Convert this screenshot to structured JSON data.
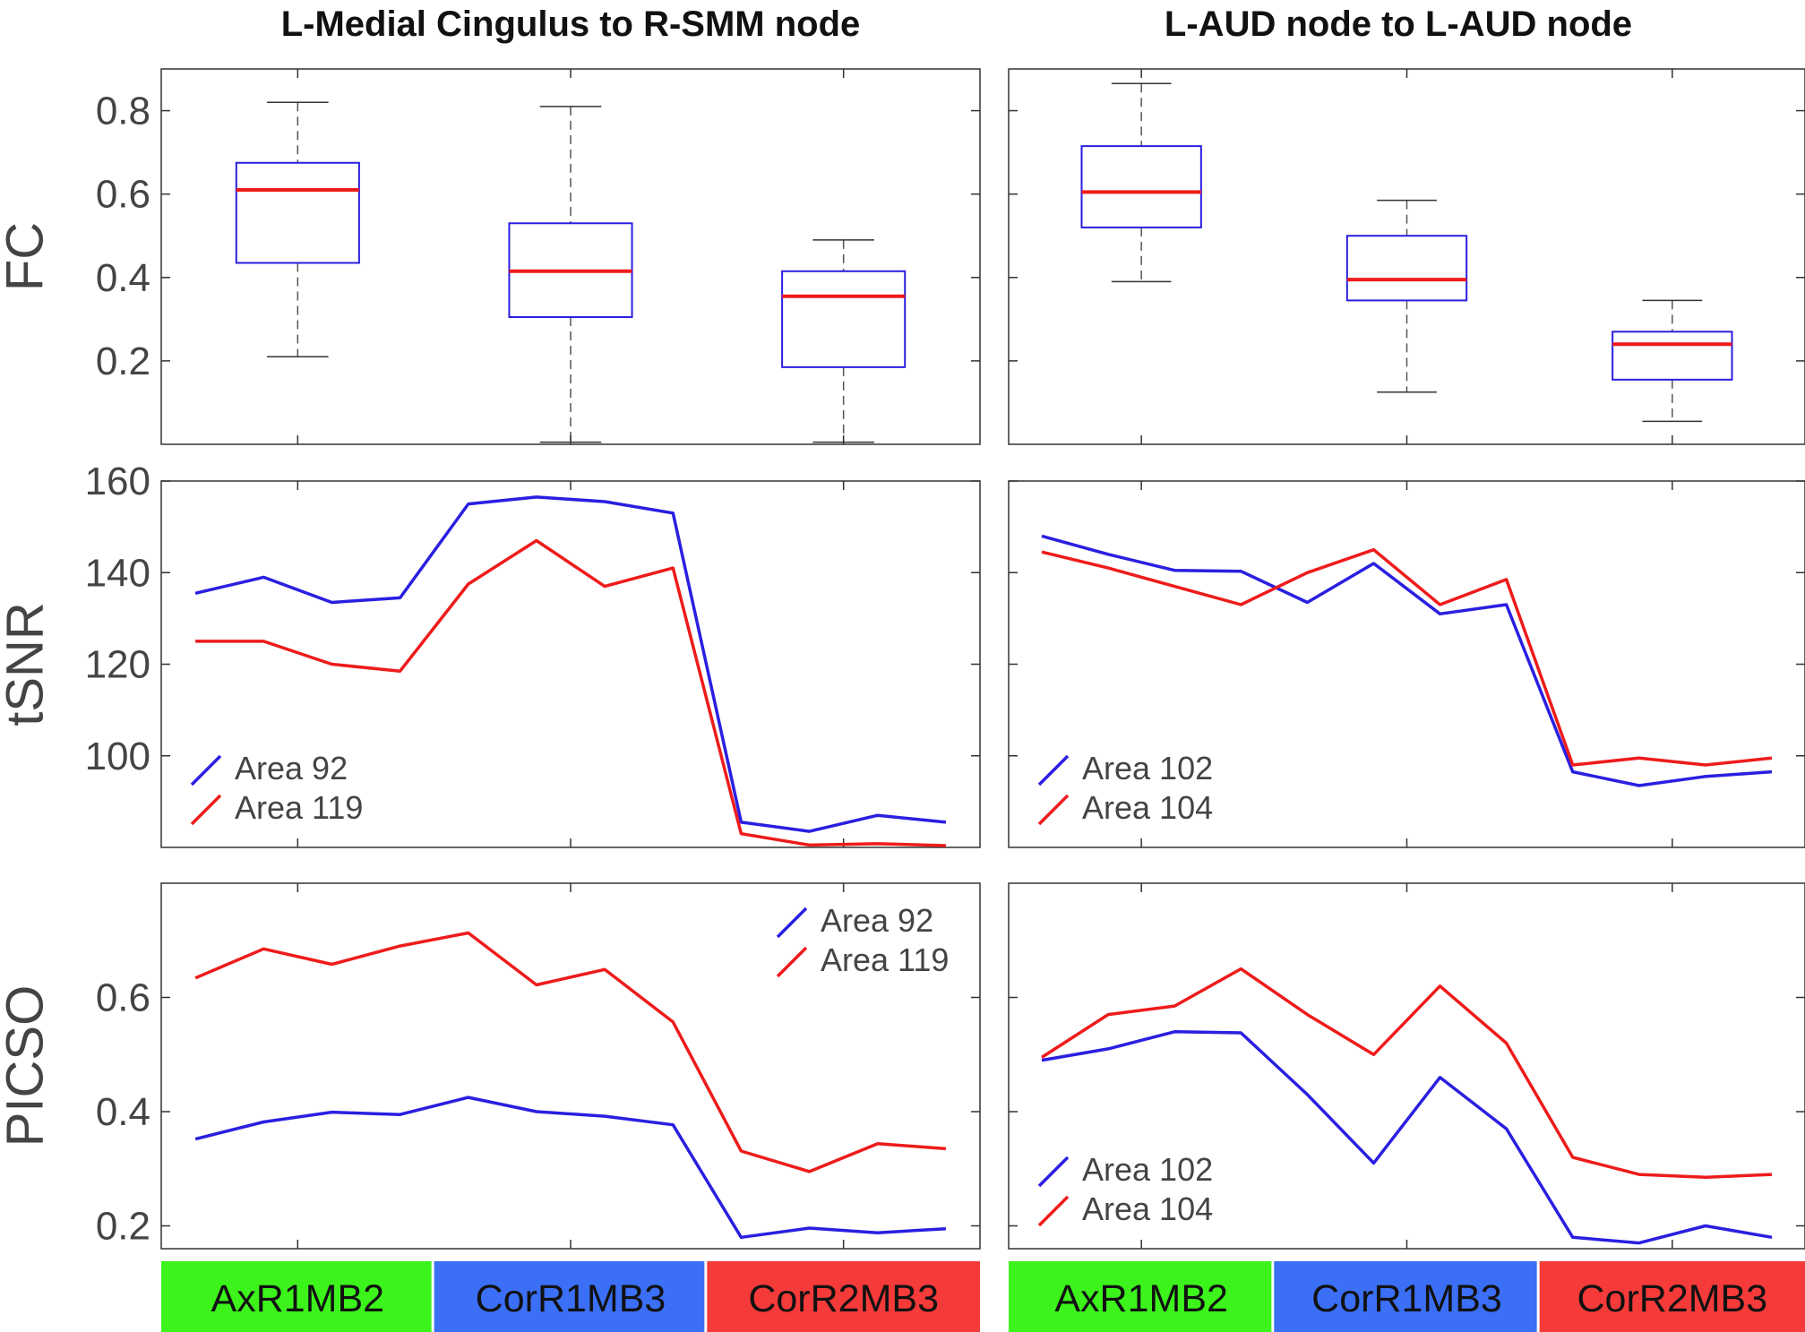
{
  "colors": {
    "blue": "#2a1fe0",
    "red": "#ee1b1b",
    "box_edge": "#2a1fe0",
    "median": "#ee1b1b",
    "whisker": "#555555",
    "axis": "#333333"
  },
  "titles": {
    "left": "L-Medial Cingulus to R-SMM node",
    "right": "L-AUD node to L-AUD node"
  },
  "conditions": [
    {
      "label": "AxR1MB2",
      "color": "#3cf41c"
    },
    {
      "label": "CorR1MB3",
      "color": "#3b6ff5"
    },
    {
      "label": "CorR2MB3",
      "color": "#f53a3a"
    }
  ],
  "chart_data": [
    {
      "id": "fc-left",
      "type": "box",
      "ylabel": "FC",
      "ylim": [
        0,
        0.9
      ],
      "yticks": [
        0.2,
        0.4,
        0.6,
        0.8
      ],
      "ytick_labels": [
        "0.2",
        "0.4",
        "0.6",
        "0.8"
      ],
      "categories": [
        "AxR1MB2",
        "CorR1MB3",
        "CorR2MB3"
      ],
      "boxes": [
        {
          "min": 0.21,
          "q1": 0.435,
          "median": 0.61,
          "q3": 0.675,
          "max": 0.82
        },
        {
          "min": 0.005,
          "q1": 0.305,
          "median": 0.415,
          "q3": 0.53,
          "max": 0.81
        },
        {
          "min": 0.005,
          "q1": 0.185,
          "median": 0.355,
          "q3": 0.415,
          "max": 0.49
        }
      ]
    },
    {
      "id": "fc-right",
      "type": "box",
      "ylabel": "",
      "ylim": [
        0,
        0.9
      ],
      "yticks": [
        0.2,
        0.4,
        0.6,
        0.8
      ],
      "ytick_labels": [
        "",
        "",
        "",
        ""
      ],
      "categories": [
        "AxR1MB2",
        "CorR1MB3",
        "CorR2MB3"
      ],
      "boxes": [
        {
          "min": 0.39,
          "q1": 0.52,
          "median": 0.605,
          "q3": 0.715,
          "max": 0.865
        },
        {
          "min": 0.125,
          "q1": 0.345,
          "median": 0.395,
          "q3": 0.5,
          "max": 0.585
        },
        {
          "min": 0.055,
          "q1": 0.155,
          "median": 0.24,
          "q3": 0.27,
          "max": 0.345
        }
      ]
    },
    {
      "id": "tsnr-left",
      "type": "line",
      "ylabel": "tSNR",
      "ylim": [
        80,
        160
      ],
      "yticks": [
        100,
        120,
        140,
        160
      ],
      "ytick_labels": [
        "100",
        "120",
        "140",
        "160"
      ],
      "x": [
        1,
        2,
        3,
        4,
        5,
        6,
        7,
        8,
        9,
        10,
        11,
        12
      ],
      "series": [
        {
          "name": "Area 92",
          "color": "#2a1fe0",
          "values": [
            135.5,
            139,
            133.5,
            134.5,
            155,
            156.5,
            155.5,
            153,
            85.5,
            83.5,
            87,
            85.5
          ]
        },
        {
          "name": "Area 119",
          "color": "#ee1b1b",
          "values": [
            125,
            125,
            120,
            118.5,
            137.5,
            147,
            137,
            141,
            83,
            80.5,
            80.8,
            80.4
          ]
        }
      ],
      "legend": "bottom-left"
    },
    {
      "id": "tsnr-right",
      "type": "line",
      "ylabel": "",
      "ylim": [
        80,
        160
      ],
      "yticks": [
        100,
        120,
        140,
        160
      ],
      "ytick_labels": [
        "",
        "",
        "",
        ""
      ],
      "x": [
        1,
        2,
        3,
        4,
        5,
        6,
        7,
        8,
        9,
        10,
        11,
        12
      ],
      "series": [
        {
          "name": "Area 102",
          "color": "#2a1fe0",
          "values": [
            148,
            144,
            140.5,
            140.3,
            133.5,
            142,
            131,
            133,
            96.5,
            93.5,
            95.5,
            96.5
          ]
        },
        {
          "name": "Area 104",
          "color": "#ee1b1b",
          "values": [
            144.5,
            141,
            137,
            133,
            140,
            145,
            133,
            138.5,
            98,
            99.5,
            98,
            99.5
          ]
        }
      ],
      "legend": "bottom-left"
    },
    {
      "id": "picso-left",
      "type": "line",
      "ylabel": "PICSO",
      "ylim": [
        0.16,
        0.8
      ],
      "yticks": [
        0.2,
        0.4,
        0.6
      ],
      "ytick_labels": [
        "0.2",
        "0.4",
        "0.6"
      ],
      "x": [
        1,
        2,
        3,
        4,
        5,
        6,
        7,
        8,
        9,
        10,
        11,
        12
      ],
      "series": [
        {
          "name": "Area 92",
          "color": "#2a1fe0",
          "values": [
            0.352,
            0.382,
            0.399,
            0.395,
            0.425,
            0.4,
            0.392,
            0.377,
            0.18,
            0.196,
            0.188,
            0.195
          ]
        },
        {
          "name": "Area 119",
          "color": "#ee1b1b",
          "values": [
            0.634,
            0.685,
            0.658,
            0.69,
            0.713,
            0.622,
            0.649,
            0.557,
            0.331,
            0.295,
            0.344,
            0.335
          ]
        }
      ],
      "legend": "top-right"
    },
    {
      "id": "picso-right",
      "type": "line",
      "ylabel": "",
      "ylim": [
        0.16,
        0.8
      ],
      "yticks": [
        0.2,
        0.4,
        0.6
      ],
      "ytick_labels": [
        "",
        "",
        ""
      ],
      "x": [
        1,
        2,
        3,
        4,
        5,
        6,
        7,
        8,
        9,
        10,
        11,
        12
      ],
      "series": [
        {
          "name": "Area 102",
          "color": "#2a1fe0",
          "values": [
            0.49,
            0.51,
            0.54,
            0.538,
            0.43,
            0.31,
            0.46,
            0.37,
            0.18,
            0.17,
            0.2,
            0.18
          ]
        },
        {
          "name": "Area 104",
          "color": "#ee1b1b",
          "values": [
            0.495,
            0.57,
            0.585,
            0.65,
            0.57,
            0.5,
            0.62,
            0.52,
            0.32,
            0.29,
            0.285,
            0.29
          ]
        }
      ],
      "legend": "bottom-left"
    }
  ]
}
